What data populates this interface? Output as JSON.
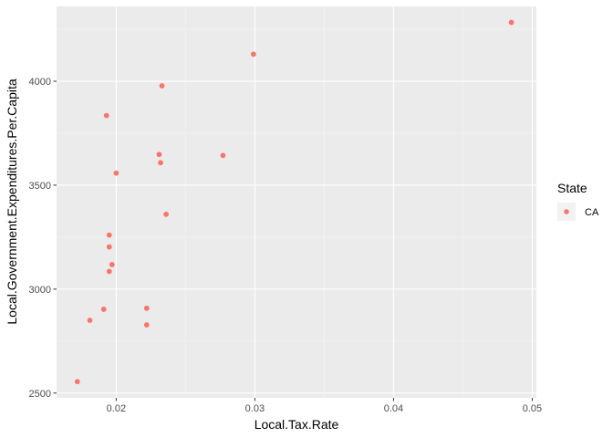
{
  "chart_data": {
    "type": "scatter",
    "xlabel": "Local.Tax.Rate",
    "ylabel": "Local.Government.Expenditures.Per.Capita",
    "xlim": [
      0.0157,
      0.0503
    ],
    "ylim": [
      2477,
      4360
    ],
    "x_ticks": [
      0.02,
      0.03,
      0.04,
      0.05
    ],
    "x_tick_labels": [
      "0.02",
      "0.03",
      "0.04",
      "0.05"
    ],
    "y_ticks": [
      2500,
      3000,
      3500,
      4000
    ],
    "y_tick_labels": [
      "2500",
      "3000",
      "3500",
      "4000"
    ],
    "grid": true,
    "legend": {
      "title": "State",
      "position": "right",
      "entries": [
        "CA"
      ]
    },
    "series": [
      {
        "name": "CA",
        "color": "#F8766D",
        "points": [
          {
            "x": 0.0485,
            "y": 4283
          },
          {
            "x": 0.0299,
            "y": 4130
          },
          {
            "x": 0.0233,
            "y": 3978
          },
          {
            "x": 0.0193,
            "y": 3835
          },
          {
            "x": 0.0231,
            "y": 3648
          },
          {
            "x": 0.0277,
            "y": 3643
          },
          {
            "x": 0.0232,
            "y": 3608
          },
          {
            "x": 0.02,
            "y": 3558
          },
          {
            "x": 0.0236,
            "y": 3360
          },
          {
            "x": 0.0195,
            "y": 3260
          },
          {
            "x": 0.0195,
            "y": 3203
          },
          {
            "x": 0.0197,
            "y": 3118
          },
          {
            "x": 0.0195,
            "y": 3085
          },
          {
            "x": 0.0222,
            "y": 2908
          },
          {
            "x": 0.0191,
            "y": 2903
          },
          {
            "x": 0.0181,
            "y": 2850
          },
          {
            "x": 0.0222,
            "y": 2828
          },
          {
            "x": 0.0172,
            "y": 2555
          }
        ]
      }
    ]
  }
}
